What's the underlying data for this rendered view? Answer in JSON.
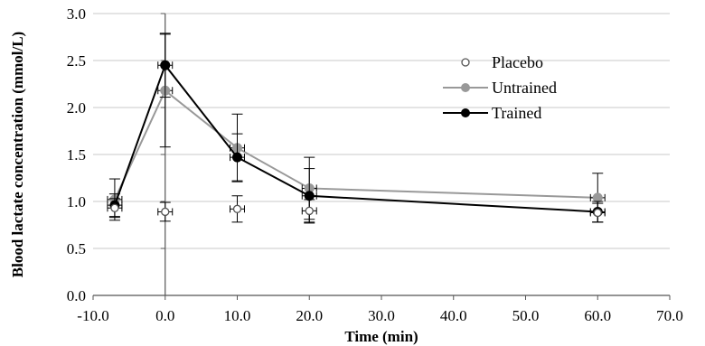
{
  "chart_data": {
    "type": "scatter",
    "xlabel": "Time (min)",
    "ylabel": "Blood lactate concentration (mmol/L)",
    "xlim": [
      -10,
      70
    ],
    "ylim": [
      0,
      3
    ],
    "x_ticks": [
      -10,
      0,
      10,
      20,
      30,
      40,
      50,
      60,
      70
    ],
    "y_ticks": [
      0,
      0.5,
      1.0,
      1.5,
      2.0,
      2.5,
      3.0
    ],
    "x_tick_labels": [
      "-10.0",
      "0.0",
      "10.0",
      "20.0",
      "30.0",
      "40.0",
      "50.0",
      "60.0",
      "70.0"
    ],
    "y_tick_labels": [
      "0.0",
      "0.5",
      "1.0",
      "1.5",
      "2.0",
      "2.5",
      "3.0"
    ],
    "grid": "horizontal",
    "legend_position": "top-right",
    "series": [
      {
        "name": "Placebo",
        "marker": "open-circle",
        "line": false,
        "color": "#555555",
        "x": [
          -7,
          0,
          10,
          20,
          60
        ],
        "y": [
          0.93,
          0.89,
          0.92,
          0.9,
          0.88
        ],
        "y_err": [
          0.1,
          0.1,
          0.14,
          0.12,
          0.1
        ],
        "x_err": [
          1,
          1,
          1,
          1,
          1
        ]
      },
      {
        "name": "Untrained",
        "marker": "filled-circle",
        "line": true,
        "color": "#999999",
        "x": [
          -7,
          0,
          10,
          20,
          60
        ],
        "y": [
          1.02,
          2.18,
          1.57,
          1.14,
          1.04
        ],
        "y_err": [
          0.22,
          0.6,
          0.36,
          0.33,
          0.26
        ],
        "x_err": [
          1,
          1,
          1,
          1,
          1
        ]
      },
      {
        "name": "Trained",
        "marker": "filled-circle",
        "line": true,
        "color": "#000000",
        "x": [
          -7,
          0,
          10,
          20,
          60
        ],
        "y": [
          0.96,
          2.45,
          1.47,
          1.06,
          0.89
        ],
        "y_err": [
          0.12,
          0.34,
          0.25,
          0.29,
          0.11
        ],
        "x_err": [
          1,
          1,
          1,
          1,
          1
        ]
      }
    ]
  }
}
